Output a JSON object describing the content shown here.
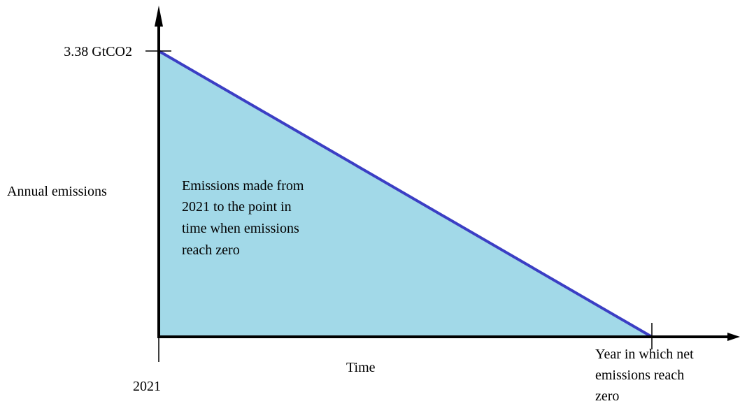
{
  "diagram": {
    "y_axis_label": "Annual emissions",
    "x_axis_label": "Time",
    "y_tick_label": "3.38 GtCO2",
    "x_start_label": "2021",
    "x_end_label": [
      "Year in which net",
      "emissions reach",
      "zero"
    ],
    "area_label": [
      "Emissions made from",
      "2021 to the point in",
      "time when emissions",
      "reach zero"
    ]
  },
  "colors": {
    "area_fill": "#a2d9e8",
    "line": "#3b3ec4",
    "axis": "#000000"
  }
}
